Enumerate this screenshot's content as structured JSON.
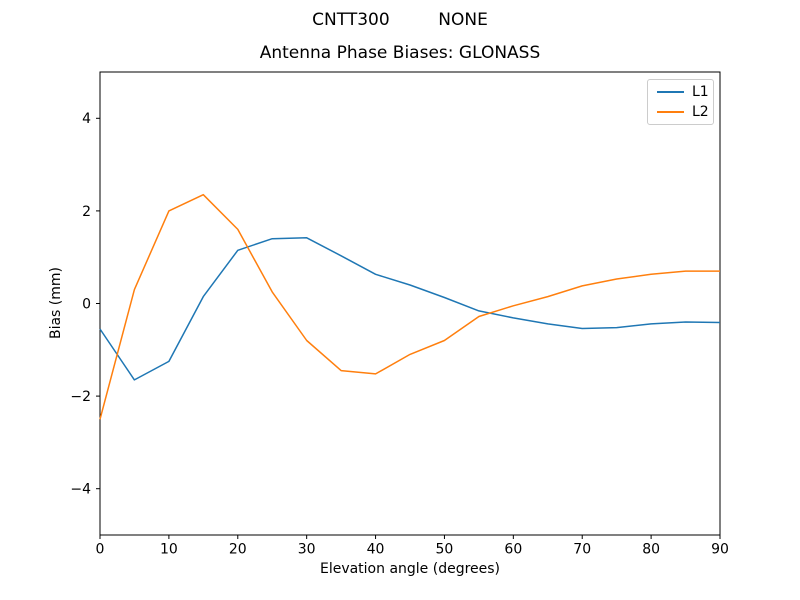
{
  "figure": {
    "suptitle": "CNTT300         NONE",
    "title": "Antenna Phase Biases: GLONASS"
  },
  "chart_data": {
    "type": "line",
    "suptitle": "CNTT300         NONE",
    "title": "Antenna Phase Biases: GLONASS",
    "xlabel": "Elevation angle (degrees)",
    "ylabel": "Bias (mm)",
    "xlim": [
      0,
      90
    ],
    "ylim": [
      -5,
      5
    ],
    "grid": false,
    "legend_position": "upper right",
    "x_ticks": [
      0,
      10,
      20,
      30,
      40,
      50,
      60,
      70,
      80,
      90
    ],
    "x_tick_labels": [
      "0",
      "10",
      "20",
      "30",
      "40",
      "50",
      "60",
      "70",
      "80",
      "90"
    ],
    "y_ticks": [
      -4,
      -2,
      0,
      2,
      4
    ],
    "y_tick_labels": [
      "−4",
      "−2",
      "0",
      "2",
      "4"
    ],
    "x": [
      0,
      5,
      10,
      15,
      20,
      25,
      30,
      35,
      40,
      45,
      50,
      55,
      60,
      65,
      70,
      75,
      80,
      85,
      90
    ],
    "series": [
      {
        "name": "L1",
        "color": "#1f77b4",
        "values": [
          -0.55,
          -1.65,
          -1.25,
          0.15,
          1.15,
          1.4,
          1.42,
          1.03,
          0.63,
          0.4,
          0.13,
          -0.16,
          -0.31,
          -0.44,
          -0.54,
          -0.52,
          -0.44,
          -0.4,
          -0.41
        ]
      },
      {
        "name": "L2",
        "color": "#ff7f0e",
        "values": [
          -2.5,
          0.3,
          2.0,
          2.35,
          1.6,
          0.25,
          -0.8,
          -1.45,
          -1.52,
          -1.1,
          -0.8,
          -0.28,
          -0.05,
          0.15,
          0.38,
          0.53,
          0.63,
          0.7,
          0.7
        ]
      }
    ],
    "axis_color": "#000000",
    "background_color": "#ffffff"
  }
}
